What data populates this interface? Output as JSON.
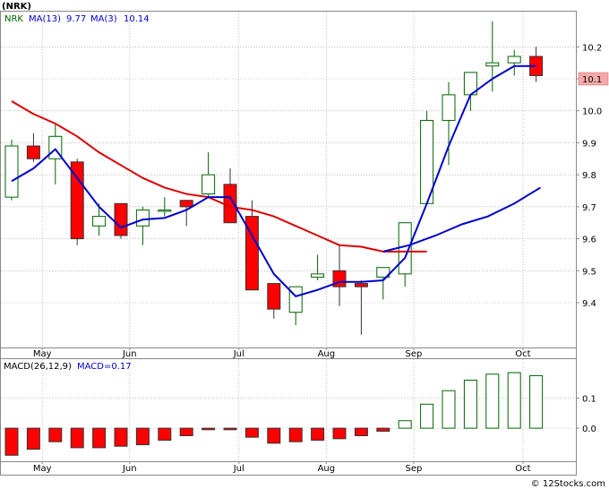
{
  "title": "(NRK)",
  "watermark": "© 12Stocks.com",
  "colors": {
    "up": "#006400",
    "down": "#ff0000",
    "ma13": "#dd0000",
    "ma3": "#0000cc",
    "price_box_bg": "#f4aaaa"
  },
  "chart_data": [
    {
      "type": "candlestick",
      "legend": {
        "symbol": "NRK",
        "ma13_label": "MA(13)",
        "ma13_value": "9.77",
        "ma3_label": "MA(3)",
        "ma3_value": "10.14"
      },
      "x_labels": [
        {
          "label": "May",
          "index": 1
        },
        {
          "label": "Jun",
          "index": 5
        },
        {
          "label": "Jul",
          "index": 10
        },
        {
          "label": "Aug",
          "index": 14
        },
        {
          "label": "Sep",
          "index": 18
        },
        {
          "label": "Oct",
          "index": 23
        }
      ],
      "ylim": [
        9.26,
        10.31
      ],
      "yticks": [
        "9.4",
        "9.5",
        "9.6",
        "9.7",
        "9.8",
        "9.9",
        "10.0",
        "10.1",
        "10.2"
      ],
      "last_price": "10.1",
      "candles": [
        {
          "o": 9.73,
          "h": 9.91,
          "l": 9.72,
          "c": 9.89
        },
        {
          "o": 9.89,
          "h": 9.93,
          "l": 9.84,
          "c": 9.85
        },
        {
          "o": 9.85,
          "h": 9.96,
          "l": 9.77,
          "c": 9.92
        },
        {
          "o": 9.84,
          "h": 9.85,
          "l": 9.58,
          "c": 9.6
        },
        {
          "o": 9.64,
          "h": 9.71,
          "l": 9.61,
          "c": 9.67
        },
        {
          "o": 9.71,
          "h": 9.71,
          "l": 9.6,
          "c": 9.61
        },
        {
          "o": 9.64,
          "h": 9.7,
          "l": 9.58,
          "c": 9.69
        },
        {
          "o": 9.69,
          "h": 9.73,
          "l": 9.67,
          "c": 9.69
        },
        {
          "o": 9.72,
          "h": 9.72,
          "l": 9.64,
          "c": 9.7
        },
        {
          "o": 9.74,
          "h": 9.87,
          "l": 9.73,
          "c": 9.8
        },
        {
          "o": 9.77,
          "h": 9.82,
          "l": 9.65,
          "c": 9.65
        },
        {
          "o": 9.67,
          "h": 9.72,
          "l": 9.44,
          "c": 9.44
        },
        {
          "o": 9.46,
          "h": 9.46,
          "l": 9.35,
          "c": 9.38
        },
        {
          "o": 9.37,
          "h": 9.45,
          "l": 9.33,
          "c": 9.45
        },
        {
          "o": 9.48,
          "h": 9.55,
          "l": 9.47,
          "c": 9.49
        },
        {
          "o": 9.5,
          "h": 9.58,
          "l": 9.39,
          "c": 9.45
        },
        {
          "o": 9.46,
          "h": 9.47,
          "l": 9.3,
          "c": 9.45
        },
        {
          "o": 9.48,
          "h": 9.51,
          "l": 9.41,
          "c": 9.51
        },
        {
          "o": 9.49,
          "h": 9.65,
          "l": 9.45,
          "c": 9.65
        },
        {
          "o": 9.71,
          "h": 10.0,
          "l": 9.71,
          "c": 9.97
        },
        {
          "o": 9.97,
          "h": 10.09,
          "l": 9.83,
          "c": 10.05
        },
        {
          "o": 10.05,
          "h": 10.12,
          "l": 10.0,
          "c": 10.12
        },
        {
          "o": 10.14,
          "h": 10.28,
          "l": 10.06,
          "c": 10.15
        },
        {
          "o": 10.15,
          "h": 10.19,
          "l": 10.11,
          "c": 10.17
        },
        {
          "o": 10.17,
          "h": 10.2,
          "l": 10.09,
          "c": 10.11
        }
      ],
      "ma13": [
        10.03,
        9.99,
        9.96,
        9.92,
        9.87,
        9.83,
        9.79,
        9.76,
        9.74,
        9.73,
        9.7,
        9.69,
        9.67,
        9.64,
        9.61,
        9.58,
        9.575,
        9.56,
        9.56,
        9.56,
        null,
        null,
        null,
        null,
        null
      ],
      "ma3": [
        9.78,
        9.82,
        9.88,
        9.79,
        9.7,
        9.635,
        9.66,
        9.665,
        9.69,
        9.73,
        9.73,
        9.61,
        9.49,
        9.42,
        9.44,
        9.465,
        9.465,
        9.47,
        9.54,
        9.71,
        9.89,
        10.05,
        10.1,
        10.14,
        10.14
      ],
      "ma13_tail": [
        9.56,
        9.58,
        9.61,
        9.645,
        9.67,
        9.71,
        9.76
      ]
    },
    {
      "type": "bar",
      "legend": {
        "label": "MACD(26,12,9)",
        "value_label": "MACD=0.17"
      },
      "ylim": [
        -0.11,
        0.23
      ],
      "yticks": [
        "0.0",
        "0.1"
      ],
      "values": [
        -0.09,
        -0.07,
        -0.045,
        -0.065,
        -0.065,
        -0.06,
        -0.055,
        -0.04,
        -0.025,
        -0.005,
        -0.005,
        -0.03,
        -0.05,
        -0.045,
        -0.04,
        -0.035,
        -0.025,
        -0.01,
        0.025,
        0.08,
        0.125,
        0.16,
        0.18,
        0.185,
        0.175
      ]
    }
  ]
}
